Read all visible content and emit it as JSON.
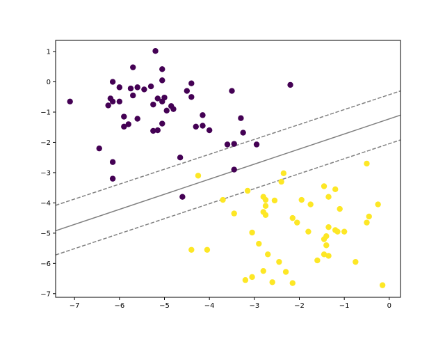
{
  "chart_data": {
    "type": "scatter",
    "title": "",
    "xlabel": "",
    "ylabel": "",
    "xlim": [
      -7.42,
      0.25
    ],
    "ylim": [
      -7.12,
      1.37
    ],
    "xticks": [
      -7,
      -6,
      -5,
      -4,
      -3,
      -2,
      -1,
      0
    ],
    "yticks": [
      1,
      0,
      -1,
      -2,
      -3,
      -4,
      -5,
      -6,
      -7
    ],
    "xtick_labels": [
      "−7",
      "−6",
      "−5",
      "−4",
      "−3",
      "−2",
      "−1",
      "0"
    ],
    "ytick_labels": [
      "1",
      "0",
      "−1",
      "−2",
      "−3",
      "−4",
      "−5",
      "−6",
      "−7"
    ],
    "grid": false,
    "legend": "none",
    "series": [
      {
        "color": "#440154",
        "points": [
          [
            -5.2,
            1.02
          ],
          [
            -5.7,
            0.48
          ],
          [
            -5.05,
            0.42
          ],
          [
            -6.15,
            -0.0
          ],
          [
            -5.05,
            0.05
          ],
          [
            -4.4,
            -0.05
          ],
          [
            -2.2,
            -0.1
          ],
          [
            -5.6,
            -0.18
          ],
          [
            -6.0,
            -0.18
          ],
          [
            -5.75,
            -0.22
          ],
          [
            -5.45,
            -0.25
          ],
          [
            -5.3,
            -0.15
          ],
          [
            -4.5,
            -0.3
          ],
          [
            -3.5,
            -0.3
          ],
          [
            -5.7,
            -0.45
          ],
          [
            -4.4,
            -0.5
          ],
          [
            -6.2,
            -0.55
          ],
          [
            -5.15,
            -0.55
          ],
          [
            -5.0,
            -0.52
          ],
          [
            -7.1,
            -0.65
          ],
          [
            -6.15,
            -0.65
          ],
          [
            -6.0,
            -0.65
          ],
          [
            -5.05,
            -0.65
          ],
          [
            -5.25,
            -0.75
          ],
          [
            -6.25,
            -0.78
          ],
          [
            -4.85,
            -0.8
          ],
          [
            -4.8,
            -0.9
          ],
          [
            -4.95,
            -0.95
          ],
          [
            -4.15,
            -1.1
          ],
          [
            -5.9,
            -1.15
          ],
          [
            -3.3,
            -1.2
          ],
          [
            -5.6,
            -1.22
          ],
          [
            -5.8,
            -1.4
          ],
          [
            -4.15,
            -1.45
          ],
          [
            -4.3,
            -1.48
          ],
          [
            -5.9,
            -1.48
          ],
          [
            -5.05,
            -1.38
          ],
          [
            -4.0,
            -1.6
          ],
          [
            -5.25,
            -1.62
          ],
          [
            -5.15,
            -1.6
          ],
          [
            -3.25,
            -1.68
          ],
          [
            -3.6,
            -2.07
          ],
          [
            -3.45,
            -2.05
          ],
          [
            -2.95,
            -2.07
          ],
          [
            -6.45,
            -2.2
          ],
          [
            -4.65,
            -2.5
          ],
          [
            -6.15,
            -2.65
          ],
          [
            -3.45,
            -2.9
          ],
          [
            -6.15,
            -3.2
          ],
          [
            -4.6,
            -3.8
          ]
        ]
      },
      {
        "color": "#fde725",
        "points": [
          [
            -0.5,
            -2.7
          ],
          [
            -2.35,
            -3.02
          ],
          [
            -4.25,
            -3.1
          ],
          [
            -2.4,
            -3.3
          ],
          [
            -1.45,
            -3.45
          ],
          [
            -3.15,
            -3.6
          ],
          [
            -1.2,
            -3.55
          ],
          [
            -2.8,
            -3.8
          ],
          [
            -2.75,
            -3.9
          ],
          [
            -1.35,
            -3.8
          ],
          [
            -3.7,
            -3.9
          ],
          [
            -2.55,
            -3.92
          ],
          [
            -1.95,
            -3.9
          ],
          [
            -1.75,
            -4.05
          ],
          [
            -2.75,
            -4.1
          ],
          [
            -0.25,
            -4.05
          ],
          [
            -1.1,
            -4.2
          ],
          [
            -2.8,
            -4.3
          ],
          [
            -3.45,
            -4.35
          ],
          [
            -2.75,
            -4.4
          ],
          [
            -0.45,
            -4.45
          ],
          [
            -2.15,
            -4.5
          ],
          [
            -2.05,
            -4.65
          ],
          [
            -0.5,
            -4.65
          ],
          [
            -1.35,
            -4.8
          ],
          [
            -1.2,
            -4.9
          ],
          [
            -1.8,
            -4.95
          ],
          [
            -1.0,
            -4.95
          ],
          [
            -1.15,
            -4.95
          ],
          [
            -3.05,
            -4.98
          ],
          [
            -1.45,
            -5.2
          ],
          [
            -1.4,
            -5.1
          ],
          [
            -2.9,
            -5.35
          ],
          [
            -1.4,
            -5.4
          ],
          [
            -4.4,
            -5.55
          ],
          [
            -4.05,
            -5.55
          ],
          [
            -1.45,
            -5.7
          ],
          [
            -1.35,
            -5.75
          ],
          [
            -2.7,
            -5.7
          ],
          [
            -1.6,
            -5.9
          ],
          [
            -2.45,
            -5.95
          ],
          [
            -0.75,
            -5.95
          ],
          [
            -2.8,
            -6.25
          ],
          [
            -2.3,
            -6.28
          ],
          [
            -3.05,
            -6.45
          ],
          [
            -3.2,
            -6.55
          ],
          [
            -2.6,
            -6.62
          ],
          [
            -2.15,
            -6.65
          ],
          [
            -0.15,
            -6.72
          ]
        ]
      }
    ],
    "lines": [
      {
        "style": "dashed",
        "color": "#808080",
        "from": [
          -7.42,
          -4.08
        ],
        "to": [
          0.25,
          -0.3
        ]
      },
      {
        "style": "solid",
        "color": "#808080",
        "from": [
          -7.42,
          -4.92
        ],
        "to": [
          0.25,
          -1.1
        ]
      },
      {
        "style": "dashed",
        "color": "#808080",
        "from": [
          -7.42,
          -5.72
        ],
        "to": [
          0.25,
          -1.92
        ]
      }
    ]
  }
}
